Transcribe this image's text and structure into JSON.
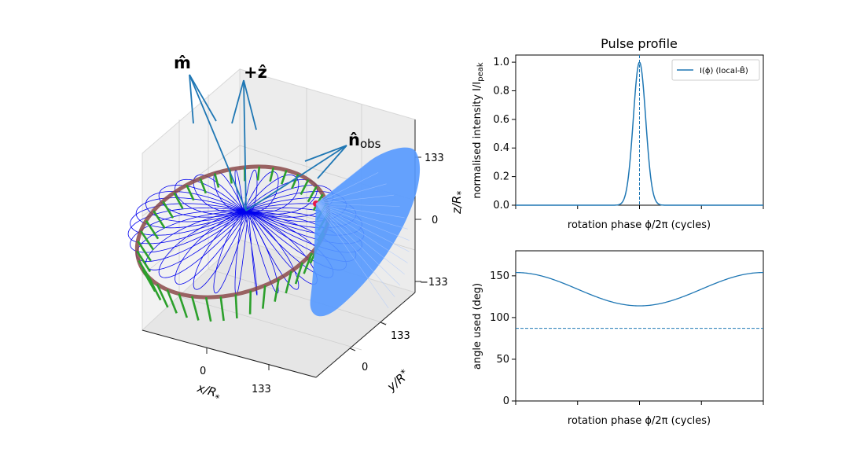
{
  "colors": {
    "line": "#1f77b4",
    "cone": "#5599ff",
    "field": "#0000ee",
    "ring": "#8b4a4a",
    "arrows": "#2ca02c",
    "marker": "#e6194b"
  },
  "chart_data": [
    {
      "type": "surface3d",
      "xlabel": "x/R",
      "ylabel": "y/R",
      "zlabel": "z/R",
      "label_sub": "*",
      "ticks": {
        "x": [
          "0",
          "133"
        ],
        "y": [
          "0",
          "133"
        ],
        "z": [
          "133",
          "0",
          "−133"
        ]
      },
      "vector_labels": {
        "m": "m̂",
        "z": "+ẑ",
        "nobs": "n̂",
        "nobs_sub": "obs"
      },
      "elements": [
        "dipole field loops",
        "light ring",
        "field direction arrows",
        "emission cone"
      ]
    },
    {
      "type": "line",
      "title": "Pulse profile",
      "xlabel": "rotation phase ϕ/2π (cycles)",
      "ylabel": "normalised intensity I/I",
      "ylabel_sub": "peak",
      "xlim": [
        0,
        1
      ],
      "ylim": [
        0.0,
        1.05
      ],
      "yticks": [
        "0.0",
        "0.2",
        "0.4",
        "0.6",
        "0.8",
        "1.0"
      ],
      "ytick_values": [
        0,
        0.2,
        0.4,
        0.6,
        0.8,
        1.0
      ],
      "xtick_values": [
        0,
        0.25,
        0.5,
        0.75,
        1.0
      ],
      "legend": "I(ϕ) (local-B̂)",
      "legend_position": "top-right",
      "peak_phase": 0.5,
      "peak_width_sigma": 0.025,
      "vline_phase": 0.5,
      "series": [
        {
          "name": "I(ϕ)",
          "peak": 1.0,
          "baseline": 0.0
        }
      ]
    },
    {
      "type": "line",
      "xlabel": "rotation phase ϕ/2π (cycles)",
      "ylabel": "angle used (deg)",
      "xlim": [
        0,
        1
      ],
      "ylim": [
        0,
        180
      ],
      "yticks": [
        "0",
        "50",
        "100",
        "150"
      ],
      "ytick_values": [
        0,
        50,
        100,
        150
      ],
      "xtick_values": [
        0,
        0.25,
        0.5,
        0.75,
        1.0
      ],
      "hline_value": 87,
      "series": [
        {
          "name": "angle",
          "max": 154,
          "min": 114,
          "min_phase": 0.5
        }
      ]
    }
  ]
}
